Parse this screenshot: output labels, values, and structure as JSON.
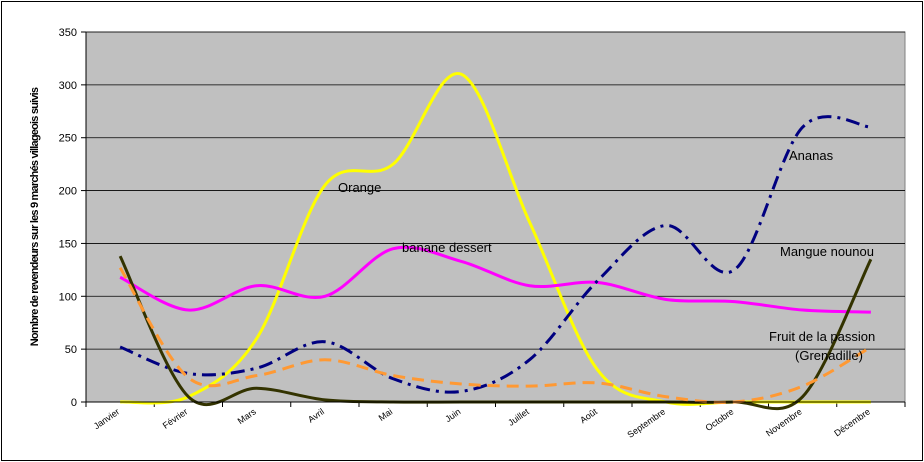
{
  "chart_data": {
    "type": "line",
    "title": "",
    "xlabel": "",
    "ylabel": "Nombre de revendeurs sur les 9 marchés villageois suivis",
    "ylim": [
      0,
      350
    ],
    "yticks": [
      0,
      50,
      100,
      150,
      200,
      250,
      300,
      350
    ],
    "grid": true,
    "colors": {
      "plot_background": "#c0c0c0",
      "gridline": "#000000"
    },
    "categories": [
      "Janvier",
      "Février",
      "Mars",
      "Avril",
      "Mai",
      "Juin",
      "Juillet",
      "Août",
      "Septembre",
      "Octobre",
      "Novembre",
      "Décembre"
    ],
    "series": [
      {
        "name": "Orange",
        "color": "#ffff00",
        "dash": "solid",
        "values": [
          0,
          5,
          60,
          205,
          225,
          310,
          170,
          30,
          0,
          0,
          0,
          0
        ]
      },
      {
        "name": "banane dessert",
        "color": "#ff00ff",
        "dash": "solid",
        "values": [
          118,
          87,
          110,
          100,
          145,
          133,
          110,
          113,
          97,
          95,
          87,
          85
        ]
      },
      {
        "name": "Ananas",
        "color": "#000080",
        "dash": "dashdot",
        "values": [
          52,
          27,
          32,
          57,
          22,
          10,
          40,
          115,
          167,
          125,
          260,
          260
        ]
      },
      {
        "name": "Mangue nounou",
        "color": "#333300",
        "dash": "solid",
        "values": [
          138,
          5,
          13,
          2,
          0,
          0,
          0,
          0,
          0,
          0,
          5,
          135
        ]
      },
      {
        "name": "Fruit de la passion (Grenadille)",
        "color": "#ff9933",
        "dash": "dash",
        "values": [
          127,
          23,
          25,
          40,
          25,
          17,
          15,
          18,
          5,
          0,
          15,
          52
        ]
      }
    ],
    "annotations": {
      "orange": "Orange",
      "banane": "banane dessert",
      "ananas": "Ananas",
      "mangue": "Mangue nounou",
      "passion_1": "Fruit de la passion",
      "passion_2": "(Grenadille)"
    }
  }
}
